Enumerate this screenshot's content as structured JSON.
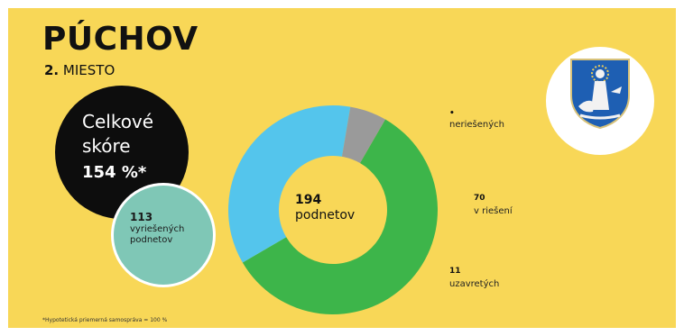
{
  "header": {
    "title": "PÚCHOV",
    "rank_number": "2.",
    "rank_word": "MIESTO"
  },
  "score": {
    "label": "Celkové skóre",
    "value": "154 %*"
  },
  "resolved": {
    "count": "113",
    "label": "vyriešených podnetov"
  },
  "center": {
    "total": "194",
    "label": "podnetov"
  },
  "legend": [
    {
      "count": "",
      "label": "neriešených"
    },
    {
      "count": "70",
      "label": "v riešení"
    },
    {
      "count": "11",
      "label": "uzavretých"
    }
  ],
  "footnote": "*Hypotetická priemerná samospráva = 100 %",
  "chart_data": {
    "type": "pie",
    "total": 194,
    "segments": [
      {
        "name": "vyriešených",
        "value": 113,
        "color": "#3db54a"
      },
      {
        "name": "v riešení",
        "value": 70,
        "color": "#54c5ec"
      },
      {
        "name": "uzavretých",
        "value": 11,
        "color": "#9a9a9a"
      },
      {
        "name": "neriešených",
        "value": 0,
        "color": "#3a2a2a"
      }
    ]
  },
  "colors": {
    "background": "#f8d757",
    "score_circle": "#0d0d0d",
    "resolved_circle": "#7fc7b6",
    "crest_shield": "#1e5fb3"
  },
  "icons": {
    "crest": "puchov-coat-of-arms-icon"
  }
}
